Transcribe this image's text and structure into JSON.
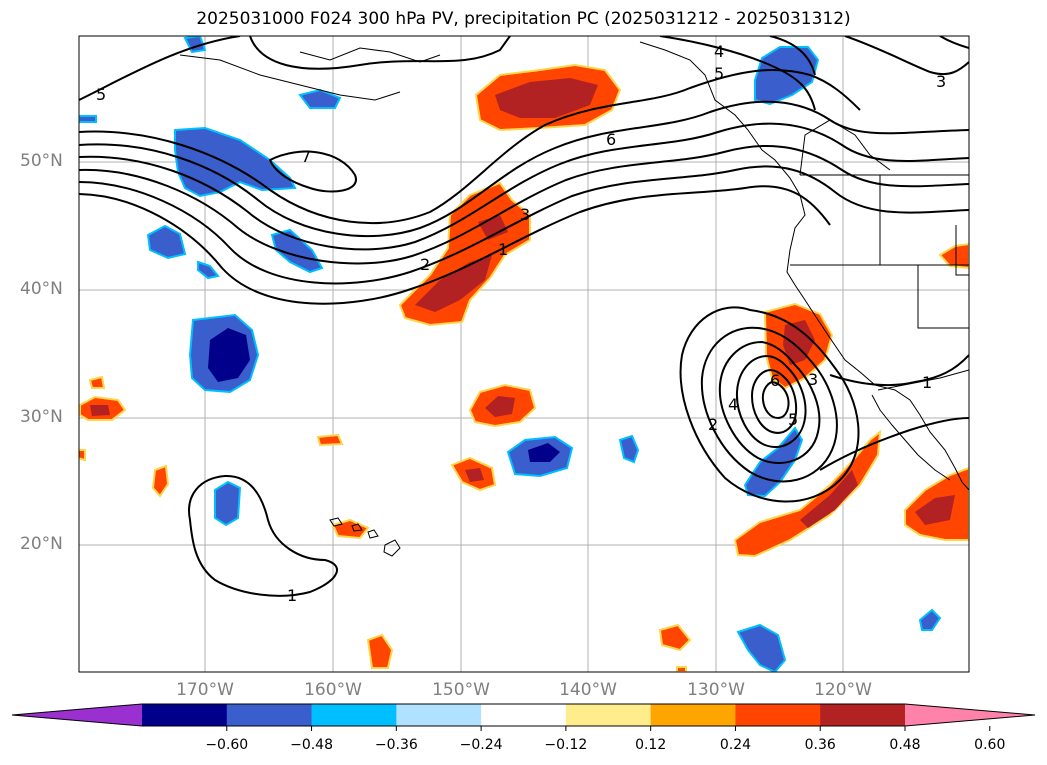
{
  "title": "2025031000 F024 300 hPa PV, precipitation PC (2025031212 - 2025031312)",
  "latitude_labels": [
    "50°N",
    "40°N",
    "30°N",
    "20°N"
  ],
  "longitude_labels": [
    "170°W",
    "160°W",
    "150°W",
    "140°W",
    "130°W",
    "120°W"
  ],
  "contour_labels": [
    "5",
    "7",
    "6",
    "4",
    "5",
    "3",
    "3",
    "2",
    "1",
    "2",
    "4",
    "6",
    "5",
    "3",
    "1",
    "1"
  ],
  "colorbar": {
    "ticks": [
      "−0.60",
      "−0.48",
      "−0.36",
      "−0.24",
      "−0.12",
      "0.12",
      "0.24",
      "0.36",
      "0.48",
      "0.60"
    ],
    "colors": [
      "#9b30d0",
      "#00008b",
      "#3a5fcd",
      "#00bfff",
      "#b0e2ff",
      "#ffffff",
      "#ffec8b",
      "#ffa500",
      "#ff4500",
      "#b22222",
      "#ff82ab"
    ]
  }
}
